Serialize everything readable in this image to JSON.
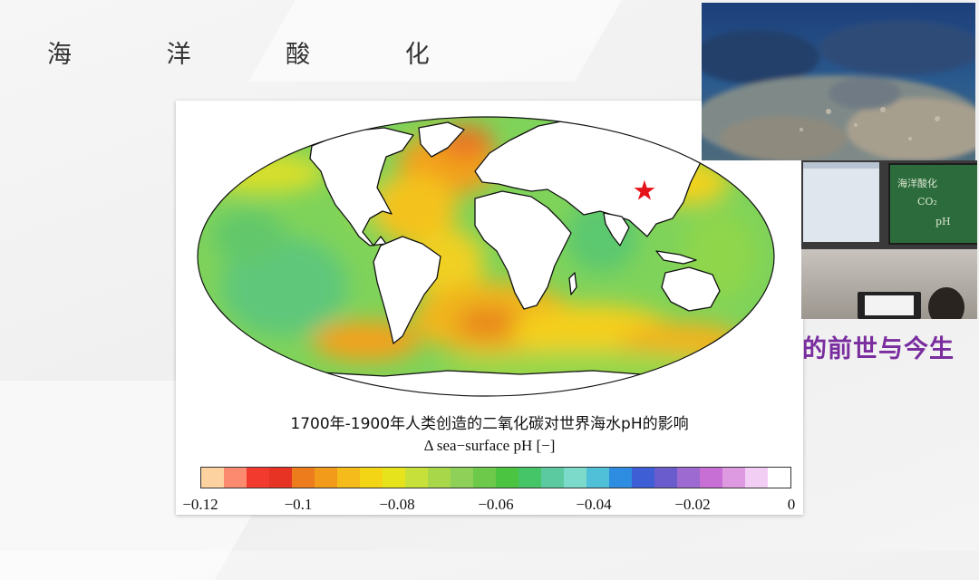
{
  "slide": {
    "title": "海 洋 酸 化",
    "subtitle": "的前世与今生"
  },
  "figure": {
    "caption": "1700年-1900年人类创造的二氧化碳对世界海水pH的影响",
    "colorbar_label": "Δ sea−surface pH [−]",
    "tick_labels": [
      "−0.12",
      "−0.1",
      "−0.08",
      "−0.06",
      "−0.04",
      "−0.02",
      "0"
    ],
    "colorbar_colors": [
      "#fcd3a0",
      "#fb8a6e",
      "#f23a2f",
      "#e63324",
      "#ec7c1c",
      "#f29a1a",
      "#f5bb1b",
      "#f4d515",
      "#e6e31c",
      "#c8e13a",
      "#a8d84a",
      "#8fd158",
      "#6cc94a",
      "#4bc442",
      "#45c468",
      "#5ccaa0",
      "#7bdac9",
      "#4fc0d8",
      "#2e8de0",
      "#3e5ed6",
      "#6a5ccc",
      "#9c6ad0",
      "#c76fd4",
      "#de9ae0",
      "#f3cef4",
      "#ffffff"
    ],
    "marker": {
      "symbol": "★",
      "color": "#e5141b"
    },
    "land_color": "#ffffff",
    "coast_color": "#111111"
  },
  "video": {
    "top_label": "underwater reef footage",
    "chalkboard_lines": [
      "海洋酸化",
      "CO₂",
      "pH"
    ]
  }
}
